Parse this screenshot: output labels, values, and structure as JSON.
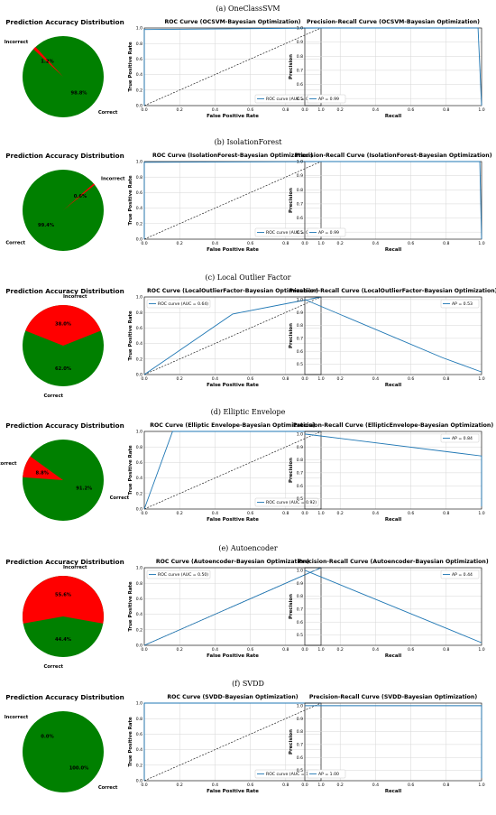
{
  "sections": [
    {
      "caption": "(a) OneClassSVM",
      "pie": {
        "title": "Prediction Accuracy Distribution",
        "correct_pct": 98.8,
        "incorrect_pct": 1.2,
        "correct_label": "Correct",
        "incorrect_label": "Incorrect",
        "correct_text": "98.8%",
        "incorrect_text": "1.2%"
      },
      "roc": {
        "title": "ROC Curve (OCSVM-Bayesian Optimization)",
        "xlabel": "False Positive Rate",
        "ylabel": "True Positive Rate",
        "legend": "ROC curve (AUC = 0.99)",
        "legend_pos": "lower right",
        "x": [
          0.0,
          0.0,
          0.02,
          1.0
        ],
        "y": [
          0.0,
          0.98,
          0.98,
          1.0
        ]
      },
      "pr": {
        "title": "Precision-Recall Curve (OCSVM-Bayesian Optimization)",
        "xlabel": "Recall",
        "ylabel": "Precision",
        "legend": "AP = 0.99",
        "legend_pos": "lower left",
        "x": [
          0.0,
          0.98,
          1.0
        ],
        "y": [
          1.0,
          1.0,
          0.45
        ],
        "ylim": [
          0.45,
          1.0
        ]
      }
    },
    {
      "caption": "(b) IsolationForest",
      "pie": {
        "title": "Prediction Accuracy Distribution",
        "correct_pct": 99.4,
        "incorrect_pct": 0.6,
        "correct_label": "Correct",
        "incorrect_label": "Incorrect",
        "correct_text": "99.4%",
        "incorrect_text": "0.6%"
      },
      "roc": {
        "title": "ROC Curve (IsolationForest-Bayesian Optimization)",
        "xlabel": "False Positive Rate",
        "ylabel": "True Positive Rate",
        "legend": "ROC curve (AUC = 0.99)",
        "legend_pos": "lower right",
        "x": [
          0.0,
          0.0,
          0.01,
          1.0
        ],
        "y": [
          0.0,
          0.99,
          0.99,
          1.0
        ]
      },
      "pr": {
        "title": "Precision-Recall Curve (IsolationForest-Bayesian Optimization)",
        "xlabel": "Recall",
        "ylabel": "Precision",
        "legend": "AP = 0.99",
        "legend_pos": "lower left",
        "x": [
          0.0,
          0.99,
          1.0
        ],
        "y": [
          1.0,
          1.0,
          0.45
        ],
        "ylim": [
          0.45,
          1.0
        ]
      }
    },
    {
      "caption": "(c) Local Outlier Factor",
      "pie": {
        "title": "Prediction Accuracy Distribution",
        "correct_pct": 62.0,
        "incorrect_pct": 38.0,
        "correct_label": "Correct",
        "incorrect_label": "Incorrect",
        "correct_text": "62.0%",
        "incorrect_text": "38.0%"
      },
      "roc": {
        "title": "ROC Curve (LocalOutlierFactor-Bayesian Optimization)",
        "xlabel": "False Positive Rate",
        "ylabel": "True Positive Rate",
        "legend": "ROC curve (AUC = 0.64)",
        "legend_pos": "upper left",
        "x": [
          0.0,
          0.5,
          1.0
        ],
        "y": [
          0.0,
          0.78,
          1.0
        ]
      },
      "pr": {
        "title": "Precision-Recall Curve (LocalOutlierFactor-Bayesian Optimization)",
        "xlabel": "Recall",
        "ylabel": "Precision",
        "legend": "AP = 0.53",
        "legend_pos": "upper right",
        "x": [
          0.0,
          0.78,
          1.0
        ],
        "y": [
          1.0,
          0.55,
          0.44
        ],
        "ylim": [
          0.42,
          1.02
        ]
      }
    },
    {
      "caption": "(d) Elliptic Envelope",
      "pie": {
        "title": "Prediction Accuracy Distribution",
        "correct_pct": 91.2,
        "incorrect_pct": 8.8,
        "correct_label": "Correct",
        "incorrect_label": "Incorrect",
        "correct_text": "91.2%",
        "incorrect_text": "8.8%"
      },
      "roc": {
        "title": "ROC Curve (Elliptic Envelope-Bayesian Optimization)",
        "xlabel": "False Positive Rate",
        "ylabel": "True Positive Rate",
        "legend": "ROC curve (AUC = 0.92)",
        "legend_pos": "lower right",
        "x": [
          0.0,
          0.16,
          1.0
        ],
        "y": [
          0.0,
          1.0,
          1.0
        ]
      },
      "pr": {
        "title": "Precision-Recall Curve (EllipticEnvelope-Bayesian Optimization)",
        "xlabel": "Recall",
        "ylabel": "Precision",
        "legend": "AP = 0.84",
        "legend_pos": "upper right",
        "x": [
          0.0,
          1.0,
          1.0
        ],
        "y": [
          1.0,
          0.83,
          0.44
        ],
        "ylim": [
          0.42,
          1.02
        ]
      }
    },
    {
      "caption": "(e) Autoencoder",
      "pie": {
        "title": "Prediction Accuracy Distribution",
        "correct_pct": 44.4,
        "incorrect_pct": 55.6,
        "correct_label": "Correct",
        "incorrect_label": "Incorrect",
        "correct_text": "44.4%",
        "incorrect_text": "55.6%"
      },
      "roc": {
        "title": "ROC Curve (Autoencoder-Bayesian Optimization)",
        "xlabel": "False Positive Rate",
        "ylabel": "True Positive Rate",
        "legend": "ROC curve (AUC = 0.50)",
        "legend_pos": "upper left",
        "x": [
          0.0,
          1.0
        ],
        "y": [
          0.0,
          1.0
        ]
      },
      "pr": {
        "title": "Precision-Recall Curve (Autoencoder-Bayesian Optimization)",
        "xlabel": "Recall",
        "ylabel": "Precision",
        "legend": "AP = 0.44",
        "legend_pos": "upper right",
        "x": [
          0.0,
          1.0
        ],
        "y": [
          1.0,
          0.44
        ],
        "ylim": [
          0.42,
          1.02
        ]
      }
    },
    {
      "caption": "(f) SVDD",
      "pie": {
        "title": "Prediction Accuracy Distribution",
        "correct_pct": 100.0,
        "incorrect_pct": 0.0,
        "correct_label": "Correct",
        "incorrect_label": "Incorrect",
        "correct_text": "100.0%",
        "incorrect_text": "0.0%"
      },
      "roc": {
        "title": "ROC Curve (SVDD-Bayesian Optimization)",
        "xlabel": "False Positive Rate",
        "ylabel": "True Positive Rate",
        "legend": "ROC curve (AUC = 1.00)",
        "legend_pos": "lower right",
        "x": [
          0.0,
          0.0,
          1.0
        ],
        "y": [
          0.0,
          1.0,
          1.0
        ]
      },
      "pr": {
        "title": "Precision-Recall Curve (SVDD-Bayesian Optimization)",
        "xlabel": "Recall",
        "ylabel": "Precision",
        "legend": "AP = 1.00",
        "legend_pos": "lower left",
        "x": [
          0.0,
          1.0,
          1.0
        ],
        "y": [
          1.0,
          1.0,
          0.44
        ],
        "ylim": [
          0.42,
          1.02
        ]
      }
    }
  ],
  "chart_data": [
    {
      "type": "pie",
      "panel": "(a) OneClassSVM",
      "title": "Prediction Accuracy Distribution",
      "categories": [
        "Correct",
        "Incorrect"
      ],
      "values": [
        98.8,
        1.2
      ]
    },
    {
      "type": "line",
      "panel": "(a) OneClassSVM",
      "title": "ROC Curve (OCSVM-Bayesian Optimization)",
      "xlabel": "False Positive Rate",
      "ylabel": "True Positive Rate",
      "series": [
        {
          "name": "ROC curve (AUC = 0.99)",
          "x": [
            0.0,
            0.0,
            0.02,
            1.0
          ],
          "y": [
            0.0,
            0.98,
            0.98,
            1.0
          ]
        }
      ],
      "diagonal": true,
      "xlim": [
        0,
        1
      ],
      "ylim": [
        0,
        1
      ],
      "grid": true,
      "legend": "lower right"
    },
    {
      "type": "line",
      "panel": "(a) OneClassSVM",
      "title": "Precision-Recall Curve (OCSVM-Bayesian Optimization)",
      "xlabel": "Recall",
      "ylabel": "Precision",
      "series": [
        {
          "name": "AP = 0.99",
          "x": [
            0.0,
            0.98,
            1.0
          ],
          "y": [
            1.0,
            1.0,
            0.45
          ]
        }
      ],
      "xlim": [
        0,
        1
      ],
      "ylim": [
        0.45,
        1.0
      ],
      "grid": true,
      "legend": "lower left"
    },
    {
      "type": "pie",
      "panel": "(b) IsolationForest",
      "title": "Prediction Accuracy Distribution",
      "categories": [
        "Correct",
        "Incorrect"
      ],
      "values": [
        99.4,
        0.6
      ]
    },
    {
      "type": "line",
      "panel": "(b) IsolationForest",
      "title": "ROC Curve (IsolationForest-Bayesian Optimization)",
      "xlabel": "False Positive Rate",
      "ylabel": "True Positive Rate",
      "series": [
        {
          "name": "ROC curve (AUC = 0.99)",
          "x": [
            0.0,
            0.0,
            0.01,
            1.0
          ],
          "y": [
            0.0,
            0.99,
            0.99,
            1.0
          ]
        }
      ],
      "diagonal": true,
      "grid": true,
      "legend": "lower right"
    },
    {
      "type": "line",
      "panel": "(b) IsolationForest",
      "title": "Precision-Recall Curve (IsolationForest-Bayesian Optimization)",
      "xlabel": "Recall",
      "ylabel": "Precision",
      "series": [
        {
          "name": "AP = 0.99",
          "x": [
            0.0,
            0.99,
            1.0
          ],
          "y": [
            1.0,
            1.0,
            0.45
          ]
        }
      ],
      "grid": true,
      "legend": "lower left"
    },
    {
      "type": "pie",
      "panel": "(c) Local Outlier Factor",
      "title": "Prediction Accuracy Distribution",
      "categories": [
        "Correct",
        "Incorrect"
      ],
      "values": [
        62.0,
        38.0
      ]
    },
    {
      "type": "line",
      "panel": "(c) Local Outlier Factor",
      "title": "ROC Curve (LocalOutlierFactor-Bayesian Optimization)",
      "xlabel": "False Positive Rate",
      "ylabel": "True Positive Rate",
      "series": [
        {
          "name": "ROC curve (AUC = 0.64)",
          "x": [
            0.0,
            0.5,
            1.0
          ],
          "y": [
            0.0,
            0.78,
            1.0
          ]
        }
      ],
      "diagonal": true,
      "grid": true,
      "legend": "upper left"
    },
    {
      "type": "line",
      "panel": "(c) Local Outlier Factor",
      "title": "Precision-Recall Curve (LocalOutlierFactor-Bayesian Optimization)",
      "xlabel": "Recall",
      "ylabel": "Precision",
      "series": [
        {
          "name": "AP = 0.53",
          "x": [
            0.0,
            0.78,
            1.0
          ],
          "y": [
            1.0,
            0.55,
            0.44
          ]
        }
      ],
      "grid": true,
      "legend": "upper right"
    },
    {
      "type": "pie",
      "panel": "(d) Elliptic Envelope",
      "title": "Prediction Accuracy Distribution",
      "categories": [
        "Correct",
        "Incorrect"
      ],
      "values": [
        91.2,
        8.8
      ]
    },
    {
      "type": "line",
      "panel": "(d) Elliptic Envelope",
      "title": "ROC Curve (Elliptic Envelope-Bayesian Optimization)",
      "xlabel": "False Positive Rate",
      "ylabel": "True Positive Rate",
      "series": [
        {
          "name": "ROC curve (AUC = 0.92)",
          "x": [
            0.0,
            0.16,
            1.0
          ],
          "y": [
            0.0,
            1.0,
            1.0
          ]
        }
      ],
      "diagonal": true,
      "grid": true,
      "legend": "lower right"
    },
    {
      "type": "line",
      "panel": "(d) Elliptic Envelope",
      "title": "Precision-Recall Curve (EllipticEnvelope-Bayesian Optimization)",
      "xlabel": "Recall",
      "ylabel": "Precision",
      "series": [
        {
          "name": "AP = 0.84",
          "x": [
            0.0,
            1.0,
            1.0
          ],
          "y": [
            1.0,
            0.83,
            0.44
          ]
        }
      ],
      "grid": true,
      "legend": "upper right"
    },
    {
      "type": "pie",
      "panel": "(e) Autoencoder",
      "title": "Prediction Accuracy Distribution",
      "categories": [
        "Correct",
        "Incorrect"
      ],
      "values": [
        44.4,
        55.6
      ]
    },
    {
      "type": "line",
      "panel": "(e) Autoencoder",
      "title": "ROC Curve (Autoencoder-Bayesian Optimization)",
      "xlabel": "False Positive Rate",
      "ylabel": "True Positive Rate",
      "series": [
        {
          "name": "ROC curve (AUC = 0.50)",
          "x": [
            0.0,
            1.0
          ],
          "y": [
            0.0,
            1.0
          ]
        }
      ],
      "diagonal": true,
      "grid": true,
      "legend": "upper left"
    },
    {
      "type": "line",
      "panel": "(e) Autoencoder",
      "title": "Precision-Recall Curve (Autoencoder-Bayesian Optimization)",
      "xlabel": "Recall",
      "ylabel": "Precision",
      "series": [
        {
          "name": "AP = 0.44",
          "x": [
            0.0,
            1.0
          ],
          "y": [
            1.0,
            0.44
          ]
        }
      ],
      "grid": true,
      "legend": "upper right"
    },
    {
      "type": "pie",
      "panel": "(f) SVDD",
      "title": "Prediction Accuracy Distribution",
      "categories": [
        "Correct",
        "Incorrect"
      ],
      "values": [
        100.0,
        0.0
      ]
    },
    {
      "type": "line",
      "panel": "(f) SVDD",
      "title": "ROC Curve (SVDD-Bayesian Optimization)",
      "xlabel": "False Positive Rate",
      "ylabel": "True Positive Rate",
      "series": [
        {
          "name": "ROC curve (AUC = 1.00)",
          "x": [
            0.0,
            0.0,
            1.0
          ],
          "y": [
            0.0,
            1.0,
            1.0
          ]
        }
      ],
      "diagonal": true,
      "grid": true,
      "legend": "lower right"
    },
    {
      "type": "line",
      "panel": "(f) SVDD",
      "title": "Precision-Recall Curve (SVDD-Bayesian Optimization)",
      "xlabel": "Recall",
      "ylabel": "Precision",
      "series": [
        {
          "name": "AP = 1.00",
          "x": [
            0.0,
            1.0,
            1.0
          ],
          "y": [
            1.0,
            1.0,
            0.44
          ]
        }
      ],
      "grid": true,
      "legend": "lower left"
    }
  ],
  "colors": {
    "correct": "#008000",
    "incorrect": "#ff0000",
    "curve": "#1f77b4",
    "diagonal": "#000000",
    "grid": "#d6d6d6"
  }
}
